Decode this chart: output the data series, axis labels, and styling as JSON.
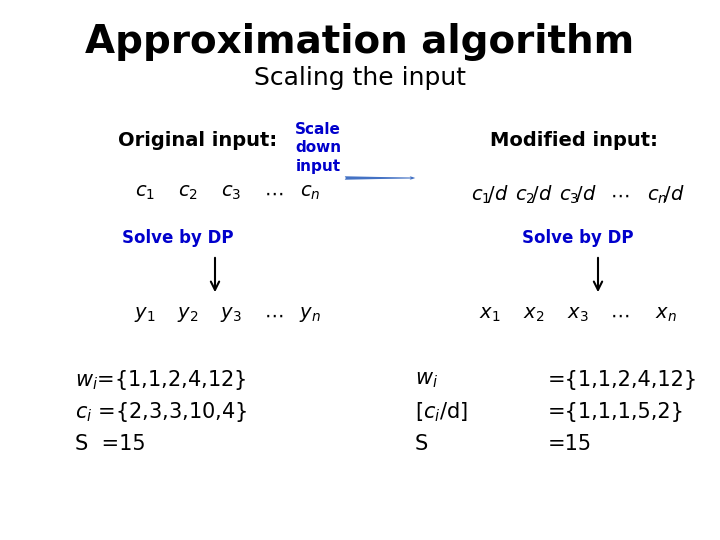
{
  "title": "Approximation algorithm",
  "subtitle": "Scaling the input",
  "title_fontsize": 28,
  "subtitle_fontsize": 18,
  "bg_color": "#ffffff",
  "text_color": "#000000",
  "blue_color": "#0000cc",
  "arrow_color": "#4472c4",
  "orig_label": "Original input:",
  "mod_label": "Modified input:",
  "scale_label": "Scale\ndown\ninput",
  "solve_dp": "Solve by DP"
}
